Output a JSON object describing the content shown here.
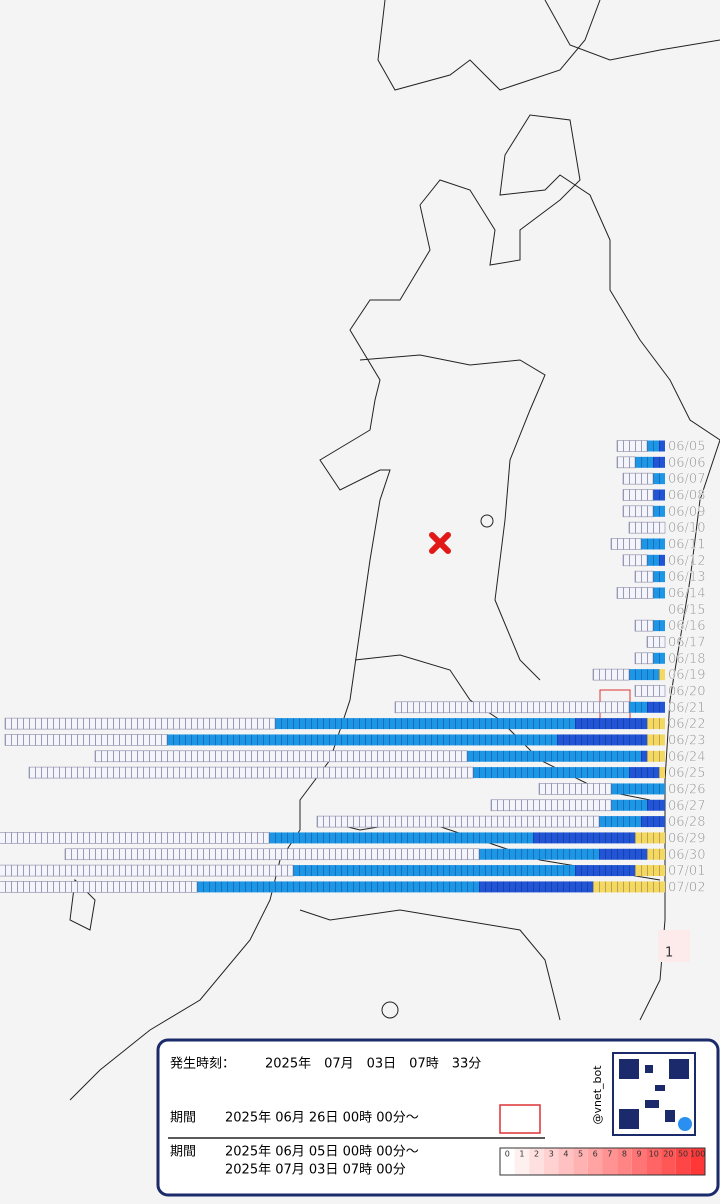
{
  "chart_data": {
    "type": "hbar-stacked",
    "categories": [
      "06/05",
      "06/06",
      "06/07",
      "06/08",
      "06/09",
      "06/10",
      "06/11",
      "06/12",
      "06/13",
      "06/14",
      "06/15",
      "06/16",
      "06/17",
      "06/18",
      "06/19",
      "06/20",
      "06/21",
      "06/22",
      "06/23",
      "06/24",
      "06/25",
      "06/26",
      "06/27",
      "06/28",
      "06/29",
      "06/30",
      "07/01",
      "07/02"
    ],
    "series": [
      {
        "color": "#f4f4fb",
        "values": [
          5,
          3,
          5,
          5,
          5,
          6,
          5,
          4,
          3,
          6,
          0,
          3,
          3,
          3,
          6,
          5,
          39,
          45,
          27,
          62,
          74,
          12,
          20,
          47,
          45,
          69,
          50,
          33
        ]
      },
      {
        "color": "#1e96e6",
        "values": [
          2,
          3,
          2,
          0,
          2,
          0,
          4,
          2,
          2,
          2,
          0,
          2,
          0,
          2,
          5,
          0,
          3,
          50,
          65,
          29,
          26,
          9,
          6,
          7,
          44,
          20,
          47,
          47
        ]
      },
      {
        "color": "#2155d6",
        "values": [
          1,
          2,
          0,
          2,
          0,
          0,
          0,
          1,
          0,
          0,
          0,
          0,
          0,
          0,
          0,
          0,
          3,
          12,
          15,
          1,
          5,
          0,
          3,
          4,
          17,
          8,
          10,
          19
        ]
      },
      {
        "color": "#f5d860",
        "values": [
          0,
          0,
          0,
          0,
          0,
          0,
          0,
          0,
          0,
          0,
          0,
          0,
          0,
          0,
          1,
          0,
          0,
          3,
          3,
          3,
          1,
          0,
          0,
          0,
          5,
          3,
          5,
          12
        ]
      }
    ]
  },
  "marker_count": "1",
  "panel": {
    "time_label": "発生時刻：",
    "time_value": "2025年　07月　03日　07時　33分",
    "period1_label": "期間",
    "period1_value": "2025年 06月 26日 00時 00分～",
    "period2_label": "期間",
    "period2_start": "2025年 06月 05日 00時 00分～",
    "period2_end": "2025年 07月 03日 07時 00分",
    "handle": "@vnet_bot",
    "scale_labels": [
      "0",
      "1",
      "2",
      "3",
      "4",
      "5",
      "6",
      "7",
      "8",
      "9",
      "10",
      "20",
      "50",
      "100"
    ]
  }
}
